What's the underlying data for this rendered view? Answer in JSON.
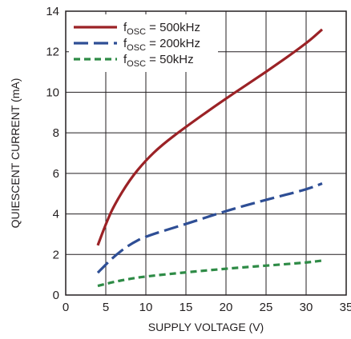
{
  "chart_data": {
    "type": "line",
    "xlabel": "SUPPLY VOLTAGE (V)",
    "ylabel": "QUIESCENT CURRENT (mA)",
    "xlim": [
      0,
      35
    ],
    "ylim": [
      0,
      14
    ],
    "x_ticks": [
      "0",
      "5",
      "10",
      "15",
      "20",
      "25",
      "30",
      "35"
    ],
    "y_ticks": [
      "0",
      "2",
      "4",
      "6",
      "8",
      "10",
      "12",
      "14"
    ],
    "grid": true,
    "legend_position": "top-left",
    "series": [
      {
        "name_main": "f",
        "name_sub": "OSC",
        "name_rest": " = 500kHz",
        "color": "#9b2226",
        "style": "solid",
        "points": [
          [
            4,
            2.45
          ],
          [
            5,
            3.5
          ],
          [
            6,
            4.4
          ],
          [
            8,
            5.7
          ],
          [
            10,
            6.65
          ],
          [
            12,
            7.4
          ],
          [
            15,
            8.3
          ],
          [
            20,
            9.7
          ],
          [
            25,
            11.0
          ],
          [
            30,
            12.4
          ],
          [
            32,
            13.1
          ]
        ]
      },
      {
        "name_main": "f",
        "name_sub": "OSC",
        "name_rest": " = 200kHz",
        "color": "#2e4e95",
        "style": "long-dash",
        "points": [
          [
            4,
            1.1
          ],
          [
            6,
            1.9
          ],
          [
            8,
            2.5
          ],
          [
            10,
            2.9
          ],
          [
            15,
            3.5
          ],
          [
            20,
            4.15
          ],
          [
            25,
            4.7
          ],
          [
            30,
            5.2
          ],
          [
            32,
            5.5
          ]
        ]
      },
      {
        "name_main": "f",
        "name_sub": "OSC",
        "name_rest": " = 50kHz",
        "color": "#2e8b46",
        "style": "short-dash",
        "points": [
          [
            4,
            0.45
          ],
          [
            6,
            0.65
          ],
          [
            8,
            0.8
          ],
          [
            10,
            0.92
          ],
          [
            15,
            1.12
          ],
          [
            20,
            1.3
          ],
          [
            25,
            1.45
          ],
          [
            30,
            1.6
          ],
          [
            32,
            1.7
          ]
        ]
      }
    ]
  }
}
